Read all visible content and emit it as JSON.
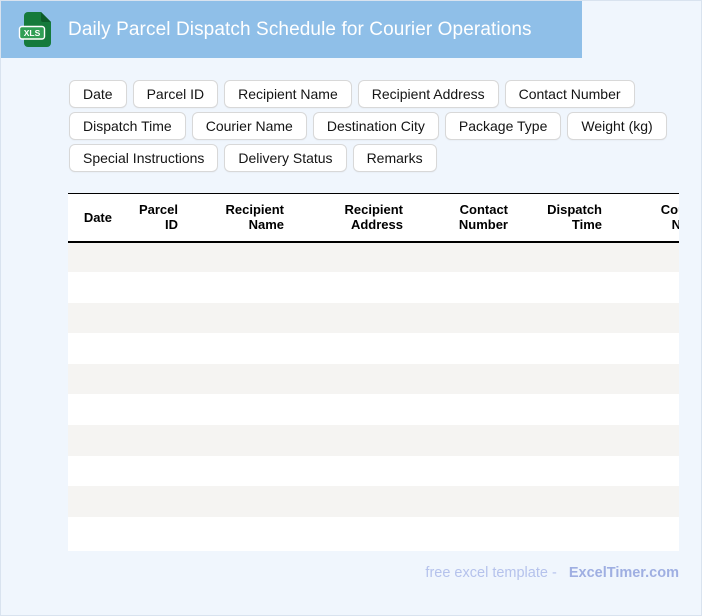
{
  "header": {
    "title": "Daily Parcel Dispatch Schedule for Courier Operations",
    "icon_label": "XLS"
  },
  "chips": {
    "rows": [
      [
        "Date",
        "Parcel ID",
        "Recipient Name",
        "Recipient Address",
        "Contact Number"
      ],
      [
        "Dispatch Time",
        "Courier Name",
        "Destination City",
        "Package Type",
        "Weight (kg)"
      ],
      [
        "Special Instructions",
        "Delivery Status",
        "Remarks"
      ]
    ]
  },
  "table": {
    "columns": [
      "Date",
      "Parcel ID",
      "Recipient Name",
      "Recipient Address",
      "Contact Number",
      "Dispatch Time",
      "Courier Name"
    ],
    "empty_row_count": 10
  },
  "footer": {
    "prefix": "free excel template -",
    "brand": "ExcelTimer.com"
  },
  "colors": {
    "header_bar": "#8FBFE8",
    "page_background": "#F0F6FD",
    "row_stripe": "#F5F4F2",
    "icon_green": "#157A3B",
    "icon_badge_green": "#2F9E54",
    "footer_text": "#B5C2EC",
    "footer_brand": "#9FAFE2"
  }
}
